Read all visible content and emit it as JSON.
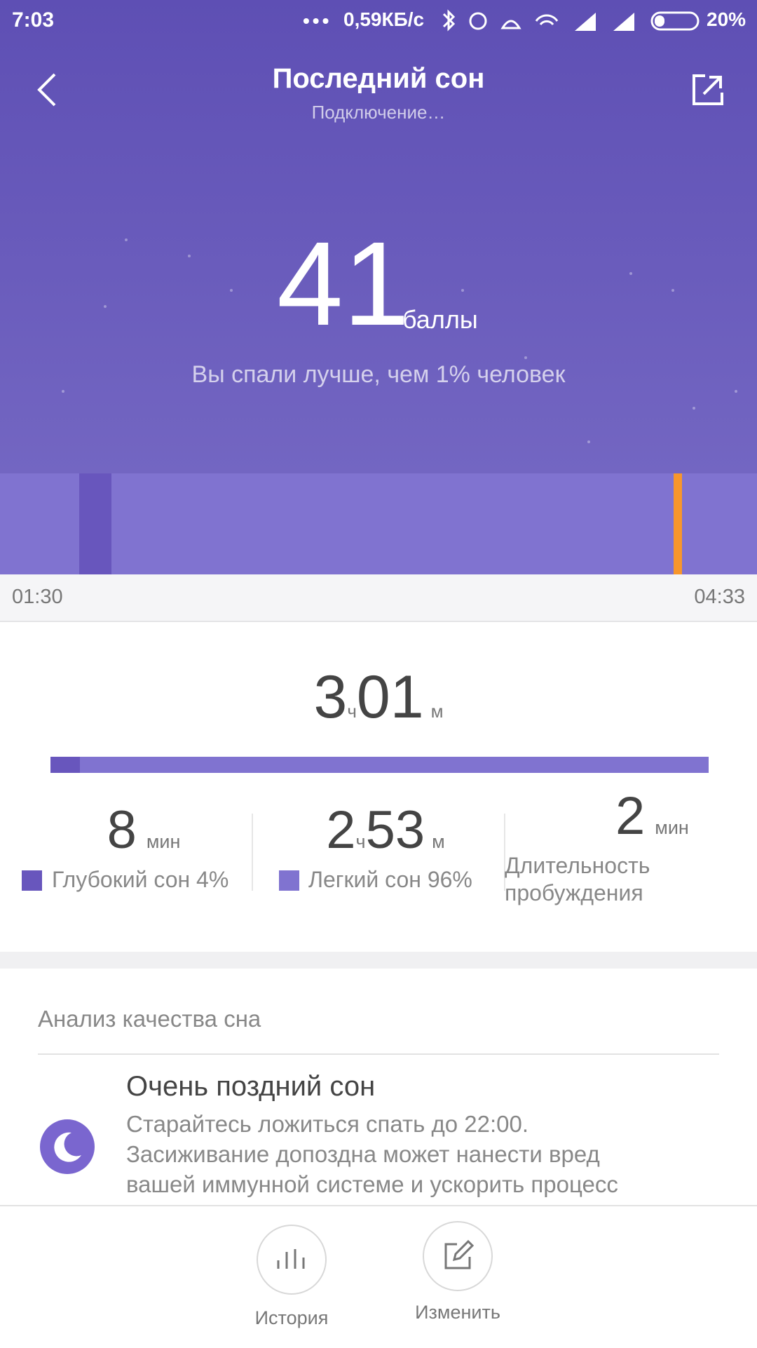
{
  "status_bar": {
    "time": "7:03",
    "network_speed": "0,59КБ/с",
    "battery": "20%"
  },
  "header": {
    "title": "Последний сон",
    "subtitle": "Подключение…"
  },
  "score": {
    "value": "41",
    "unit": "баллы",
    "comparison": "Вы спали лучше, чем 1% человек"
  },
  "timeline": {
    "start": "01:30",
    "end": "04:33"
  },
  "total": {
    "hours": "3",
    "hours_unit": "ч",
    "minutes": "01",
    "minutes_unit": "м"
  },
  "stats": [
    {
      "value": "8",
      "unit": "мин",
      "label": "Глубокий сон 4%"
    },
    {
      "hours": "2",
      "hours_unit": "ч",
      "minutes": "53",
      "minutes_unit": "м",
      "label": "Легкий сон 96%"
    },
    {
      "value": "2",
      "unit": "мин",
      "label": "Длительность пробуждения"
    }
  ],
  "analysis": {
    "title": "Анализ качества сна",
    "items": [
      {
        "title": "Очень поздний сон",
        "description": [
          "Старайтесь ложиться спать до 22:00.",
          "Засиживание допоздна может нанести вред",
          "вашей иммунной системе и ускорить процесс"
        ]
      }
    ]
  },
  "bottom_nav": [
    {
      "label": "История"
    },
    {
      "label": "Изменить"
    }
  ]
}
